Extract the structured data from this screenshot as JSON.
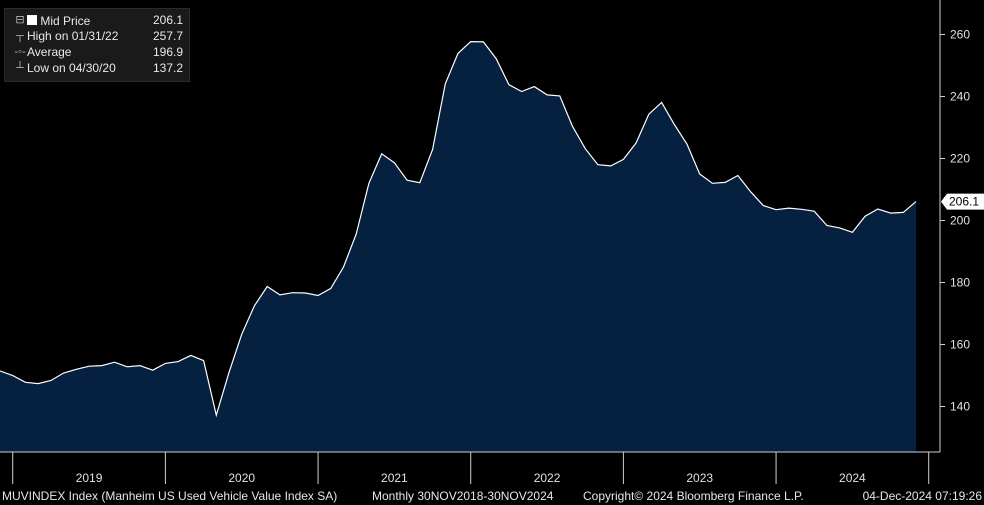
{
  "chart_data": {
    "type": "area",
    "frequency": "Monthly",
    "x_start": "2018-11-30",
    "x_end": "2024-11-30",
    "ylim": [
      128,
      271
    ],
    "yticks": [
      140,
      160,
      180,
      200,
      220,
      240,
      260
    ],
    "year_labels": [
      "2019",
      "2020",
      "2021",
      "2022",
      "2023",
      "2024"
    ],
    "last_value_label": "206.1",
    "line_color": "#ffffff",
    "fill_color": "#06203f",
    "series": [
      {
        "values": [
          151.5,
          150.0,
          147.8,
          147.4,
          148.4,
          150.8,
          152.0,
          153.0,
          153.2,
          154.3,
          152.8,
          153.2,
          151.7,
          153.9,
          154.5,
          156.5,
          154.8,
          137.2,
          151.0,
          163.3,
          172.5,
          178.7,
          176.0,
          176.7,
          176.6,
          175.8,
          178.1,
          185.0,
          195.6,
          212.0,
          221.5,
          218.6,
          213.0,
          212.2,
          222.9,
          244.1,
          253.9,
          257.7,
          257.6,
          252.2,
          243.8,
          241.6,
          243.2,
          240.5,
          240.2,
          230.4,
          223.2,
          218.0,
          217.6,
          219.7,
          225.0,
          234.3,
          238.1,
          231.0,
          224.6,
          215.0,
          212.0,
          212.3,
          214.5,
          209.3,
          204.8,
          203.5,
          204.0,
          203.6,
          203.0,
          198.4,
          197.6,
          196.2,
          201.4,
          203.7,
          202.4,
          202.6,
          206.1
        ]
      }
    ]
  },
  "legend": {
    "mid_price": {
      "label": "Mid Price",
      "value": "206.1"
    },
    "high": {
      "label": "High on 01/31/22",
      "value": "257.7"
    },
    "average": {
      "label": "Average",
      "value": "196.9"
    },
    "low": {
      "label": "Low on 04/30/20",
      "value": "137.2"
    }
  },
  "footer": {
    "index_name": "MUVINDEX Index (Manheim US Used Vehicle Value Index SA)",
    "range": "Monthly 30NOV2018-30NOV2024",
    "copyright": "Copyright© 2024 Bloomberg Finance L.P.",
    "timestamp": "04-Dec-2024 07:19:26"
  }
}
